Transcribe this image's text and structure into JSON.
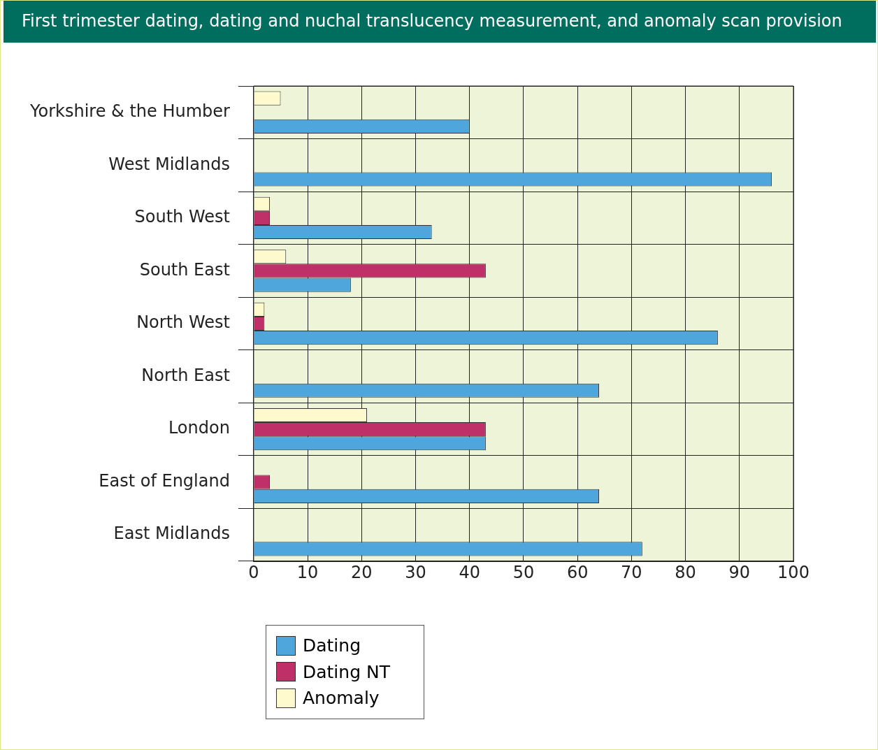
{
  "chart_data": {
    "type": "bar",
    "orientation": "horizontal",
    "title": "First trimester dating, dating and nuchal translucency measurement, and anomaly scan provision",
    "categories": [
      "Yorkshire & the Humber",
      "West Midlands",
      "South West",
      "South East",
      "North West",
      "North East",
      "London",
      "East of England",
      "East Midlands"
    ],
    "series": [
      {
        "name": "Dating",
        "color": "#4ea6dc",
        "values": [
          40,
          96,
          33,
          18,
          86,
          64,
          43,
          64,
          72
        ]
      },
      {
        "name": "Dating NT",
        "color": "#c03068",
        "values": [
          null,
          null,
          3,
          43,
          2,
          null,
          43,
          3,
          null
        ]
      },
      {
        "name": "Anomaly",
        "color": "#fffacd",
        "values": [
          5,
          null,
          3,
          6,
          2,
          null,
          21,
          null,
          null
        ]
      }
    ],
    "xlim": [
      0,
      100
    ],
    "xticks": [
      0,
      10,
      20,
      30,
      40,
      50,
      60,
      70,
      80,
      90,
      100
    ],
    "grid": true,
    "legend": "bottom"
  }
}
